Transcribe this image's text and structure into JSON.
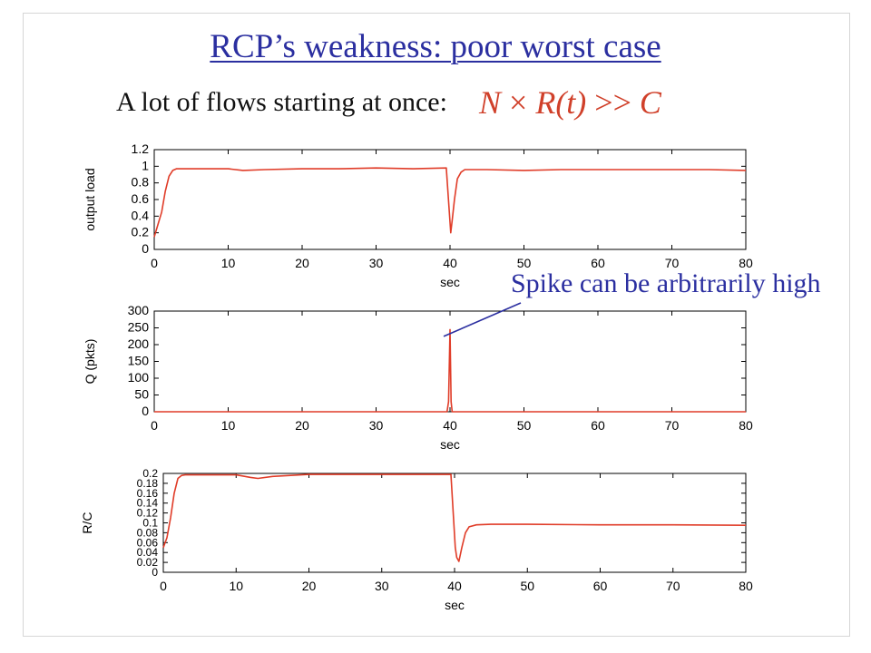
{
  "slide": {
    "title": "RCP’s weakness: poor worst case",
    "subtitle": "A lot of flows starting at once:",
    "formula": {
      "n": "N",
      "times": "×",
      "rt": "R(t)",
      "gg": ">>",
      "c": "C"
    },
    "annotation": "Spike can be arbitrarily high"
  },
  "colors": {
    "title": "#2b2fa0",
    "formula": "#d0402a",
    "series": "#e03c28",
    "annotation": "#2b2fa0"
  },
  "chart_data": [
    {
      "type": "line",
      "xlabel": "sec",
      "ylabel": "output load",
      "xlim": [
        0,
        80
      ],
      "ylim": [
        0,
        1.2
      ],
      "xticks": [
        "0",
        "10",
        "20",
        "30",
        "40",
        "50",
        "60",
        "70",
        "80"
      ],
      "yticks": [
        "0",
        "0.2",
        "0.4",
        "0.6",
        "0.8",
        "1",
        "1.2"
      ],
      "grid": false,
      "series": [
        {
          "x": [
            0,
            0.5,
            1,
            1.5,
            2,
            2.5,
            3,
            5,
            8,
            10,
            12,
            15,
            20,
            25,
            30,
            35,
            39.5,
            40.1,
            40.3,
            40.6,
            41,
            41.5,
            42,
            43,
            45,
            50,
            55,
            60,
            65,
            70,
            75,
            80
          ],
          "y": [
            0.15,
            0.3,
            0.45,
            0.7,
            0.88,
            0.95,
            0.97,
            0.97,
            0.97,
            0.97,
            0.95,
            0.96,
            0.97,
            0.97,
            0.98,
            0.97,
            0.98,
            0.2,
            0.35,
            0.6,
            0.85,
            0.93,
            0.96,
            0.96,
            0.96,
            0.95,
            0.96,
            0.96,
            0.96,
            0.96,
            0.96,
            0.95
          ]
        }
      ]
    },
    {
      "type": "line",
      "xlabel": "sec",
      "ylabel": "Q (pkts)",
      "xlim": [
        0,
        80
      ],
      "ylim": [
        0,
        300
      ],
      "xticks": [
        "0",
        "10",
        "20",
        "30",
        "40",
        "50",
        "60",
        "70",
        "80"
      ],
      "yticks": [
        "0",
        "50",
        "100",
        "150",
        "200",
        "250",
        "300"
      ],
      "grid": false,
      "series": [
        {
          "x": [
            0,
            39.6,
            39.8,
            40.0,
            40.15,
            40.3,
            80
          ],
          "y": [
            0,
            0,
            30,
            245,
            30,
            0,
            0
          ]
        }
      ]
    },
    {
      "type": "line",
      "xlabel": "sec",
      "ylabel": "R/C",
      "xlim": [
        0,
        80
      ],
      "ylim": [
        0,
        0.2
      ],
      "xticks": [
        "0",
        "10",
        "20",
        "30",
        "40",
        "50",
        "60",
        "70",
        "80"
      ],
      "yticks": [
        "0",
        "0.02",
        "0.04",
        "0.06",
        "0.08",
        "0.1",
        "0.12",
        "0.14",
        "0.16",
        "0.18",
        "0.2"
      ],
      "grid": false,
      "series": [
        {
          "x": [
            0,
            0.5,
            1,
            1.5,
            2,
            2.5,
            3,
            5,
            8,
            10,
            12,
            13,
            15,
            20,
            30,
            39.5,
            40.1,
            40.3,
            40.6,
            41,
            41.5,
            42,
            43,
            45,
            50,
            60,
            70,
            80
          ],
          "y": [
            0.05,
            0.07,
            0.11,
            0.16,
            0.19,
            0.196,
            0.197,
            0.197,
            0.197,
            0.197,
            0.192,
            0.19,
            0.194,
            0.198,
            0.198,
            0.198,
            0.05,
            0.03,
            0.022,
            0.05,
            0.08,
            0.092,
            0.096,
            0.097,
            0.097,
            0.096,
            0.096,
            0.095
          ]
        }
      ]
    }
  ]
}
